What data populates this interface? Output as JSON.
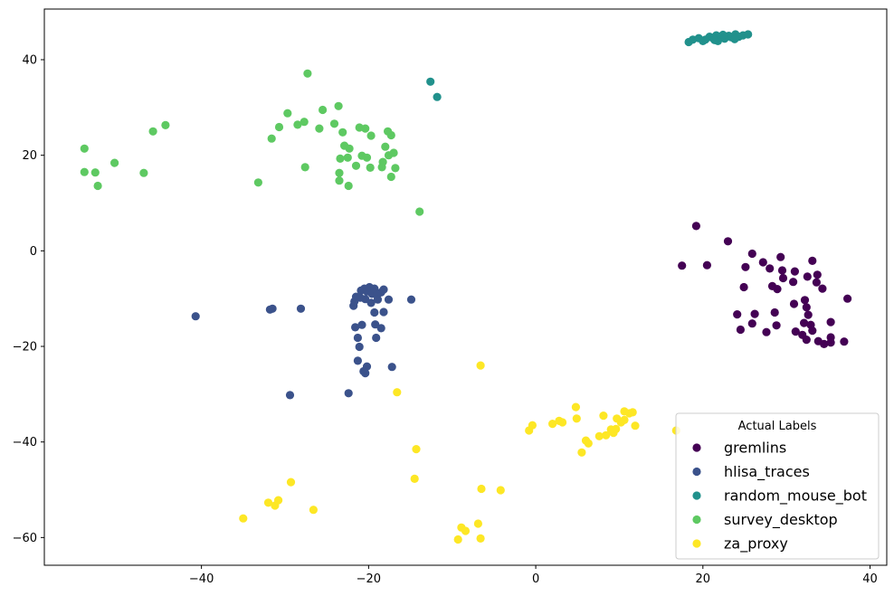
{
  "chart_data": {
    "type": "scatter",
    "title": "",
    "xlabel": "",
    "ylabel": "",
    "xlim": [
      -58.8,
      42
    ],
    "ylim": [
      -65.8,
      50.6
    ],
    "xticks": [
      -40,
      -20,
      0,
      20,
      40
    ],
    "yticks": [
      -60,
      -40,
      -20,
      0,
      20,
      40
    ],
    "xtick_labels": [
      "−40",
      "−20",
      "0",
      "20",
      "40"
    ],
    "ytick_labels": [
      "−60",
      "−40",
      "−20",
      "0",
      "20",
      "40"
    ],
    "grid": false,
    "legend": {
      "title": "Actual Labels",
      "placement": "lower-right"
    },
    "series": [
      {
        "name": "gremlins",
        "color": "#440154",
        "points": [
          [
            19.2,
            5.2
          ],
          [
            23,
            2
          ],
          [
            20.5,
            -3
          ],
          [
            17.5,
            -3.1
          ],
          [
            25.9,
            -0.6
          ],
          [
            25.1,
            -3.4
          ],
          [
            27.2,
            -2.4
          ],
          [
            28,
            -3.7
          ],
          [
            29.3,
            -1.3
          ],
          [
            29.5,
            -4.1
          ],
          [
            31,
            -4.3
          ],
          [
            32.5,
            -5.4
          ],
          [
            33.1,
            -2.1
          ],
          [
            33.7,
            -5
          ],
          [
            24.9,
            -7.6
          ],
          [
            28.3,
            -7.4
          ],
          [
            28.9,
            -8
          ],
          [
            29.6,
            -5.7
          ],
          [
            30.8,
            -6.5
          ],
          [
            32.2,
            -10.3
          ],
          [
            34.3,
            -7.9
          ],
          [
            33.6,
            -6.6
          ],
          [
            37.3,
            -10
          ],
          [
            26.2,
            -13.2
          ],
          [
            24.1,
            -13.3
          ],
          [
            25.9,
            -15.2
          ],
          [
            28.6,
            -12.9
          ],
          [
            30.9,
            -11.1
          ],
          [
            32.4,
            -11.8
          ],
          [
            32.6,
            -13.4
          ],
          [
            35.3,
            -14.9
          ],
          [
            24.5,
            -16.5
          ],
          [
            27.6,
            -17
          ],
          [
            28.8,
            -15.6
          ],
          [
            31.1,
            -16.9
          ],
          [
            32.1,
            -15.1
          ],
          [
            32.9,
            -15.5
          ],
          [
            31.9,
            -17.6
          ],
          [
            33.1,
            -16.7
          ],
          [
            32.4,
            -18.6
          ],
          [
            33.8,
            -18.9
          ],
          [
            34.5,
            -19.5
          ],
          [
            35.3,
            -18.1
          ],
          [
            35.3,
            -19.2
          ],
          [
            36.9,
            -19
          ]
        ]
      },
      {
        "name": "hlisa_traces",
        "color": "#3b528b",
        "points": [
          [
            -40.7,
            -13.7
          ],
          [
            -31.8,
            -12.3
          ],
          [
            -31.5,
            -12.1
          ],
          [
            -28.1,
            -12.1
          ],
          [
            -29.4,
            -30.2
          ],
          [
            -22.4,
            -29.8
          ],
          [
            -14.9,
            -10.2
          ],
          [
            -17.2,
            -24.3
          ],
          [
            -21.8,
            -11.5
          ],
          [
            -21.7,
            -10.6
          ],
          [
            -21.5,
            -9.6
          ],
          [
            -20.9,
            -8.3
          ],
          [
            -20.5,
            -7.9
          ],
          [
            -20.2,
            -8.5
          ],
          [
            -19.9,
            -7.6
          ],
          [
            -19.6,
            -9
          ],
          [
            -19.3,
            -7.9
          ],
          [
            -19,
            -9.3
          ],
          [
            -18.5,
            -8.7
          ],
          [
            -18.2,
            -8.1
          ],
          [
            -18.9,
            -10.2
          ],
          [
            -19.7,
            -10.9
          ],
          [
            -20.4,
            -10.1
          ],
          [
            -21,
            -9.8
          ],
          [
            -19.3,
            -12.9
          ],
          [
            -18.2,
            -12.8
          ],
          [
            -17.6,
            -10.2
          ],
          [
            -21.6,
            -16
          ],
          [
            -20.8,
            -15.5
          ],
          [
            -19.2,
            -15.4
          ],
          [
            -18.5,
            -16.2
          ],
          [
            -21.3,
            -18.2
          ],
          [
            -19.1,
            -18.2
          ],
          [
            -21.1,
            -20.1
          ],
          [
            -21.3,
            -23
          ],
          [
            -20.2,
            -24.2
          ],
          [
            -20.6,
            -25.2
          ],
          [
            -20.4,
            -25.6
          ]
        ]
      },
      {
        "name": "random_mouse_bot",
        "color": "#21918c",
        "points": [
          [
            -12.6,
            35.4
          ],
          [
            -11.8,
            32.2
          ],
          [
            18.3,
            43.7
          ],
          [
            18.8,
            44.2
          ],
          [
            19.5,
            44.5
          ],
          [
            20.3,
            44.2
          ],
          [
            20.8,
            44.8
          ],
          [
            21.2,
            44.5
          ],
          [
            21.6,
            45.1
          ],
          [
            22.1,
            44.8
          ],
          [
            22.6,
            44.4
          ],
          [
            23.1,
            45
          ],
          [
            23.4,
            44.7
          ],
          [
            23.9,
            45.3
          ],
          [
            24.3,
            44.8
          ],
          [
            24.8,
            45.1
          ],
          [
            25.4,
            45.3
          ],
          [
            20,
            43.9
          ],
          [
            21.8,
            43.9
          ],
          [
            22.4,
            45.2
          ],
          [
            23.8,
            44.3
          ],
          [
            21.4,
            44.1
          ]
        ]
      },
      {
        "name": "survey_desktop",
        "color": "#5ec962",
        "points": [
          [
            -54,
            21.4
          ],
          [
            -54,
            16.5
          ],
          [
            -52.7,
            16.4
          ],
          [
            -52.4,
            13.6
          ],
          [
            -50.4,
            18.4
          ],
          [
            -46.9,
            16.3
          ],
          [
            -45.8,
            25
          ],
          [
            -44.3,
            26.3
          ],
          [
            -33.2,
            14.3
          ],
          [
            -31.6,
            23.5
          ],
          [
            -30.7,
            25.9
          ],
          [
            -29.7,
            28.8
          ],
          [
            -28.5,
            26.4
          ],
          [
            -27.7,
            27
          ],
          [
            -27.6,
            17.5
          ],
          [
            -27.3,
            37.1
          ],
          [
            -25.9,
            25.6
          ],
          [
            -25.5,
            29.5
          ],
          [
            -24.1,
            26.6
          ],
          [
            -23.6,
            30.3
          ],
          [
            -23.1,
            24.8
          ],
          [
            -22.9,
            22
          ],
          [
            -22.3,
            21.4
          ],
          [
            -22.5,
            19.5
          ],
          [
            -23.4,
            19.3
          ],
          [
            -23.5,
            16.3
          ],
          [
            -23.5,
            14.7
          ],
          [
            -22.4,
            13.6
          ],
          [
            -21.5,
            17.8
          ],
          [
            -20.8,
            19.9
          ],
          [
            -21.1,
            25.8
          ],
          [
            -20.4,
            25.6
          ],
          [
            -20.2,
            19.5
          ],
          [
            -19.7,
            24.1
          ],
          [
            -19.8,
            17.4
          ],
          [
            -18.4,
            17.5
          ],
          [
            -18.3,
            18.6
          ],
          [
            -18,
            21.8
          ],
          [
            -17.7,
            25
          ],
          [
            -17.3,
            24.2
          ],
          [
            -17.6,
            20
          ],
          [
            -17,
            20.5
          ],
          [
            -17.3,
            15.5
          ],
          [
            -16.8,
            17.3
          ],
          [
            -13.9,
            8.2
          ]
        ]
      },
      {
        "name": "za_proxy",
        "color": "#fde725",
        "points": [
          [
            -6.6,
            -24
          ],
          [
            -16.6,
            -29.6
          ],
          [
            -14.3,
            -41.5
          ],
          [
            -14.5,
            -47.7
          ],
          [
            -29.3,
            -48.4
          ],
          [
            -35,
            -56
          ],
          [
            -32,
            -52.7
          ],
          [
            -31.2,
            -53.3
          ],
          [
            -30.8,
            -52.2
          ],
          [
            -26.6,
            -54.2
          ],
          [
            -9.3,
            -60.4
          ],
          [
            -8.9,
            -57.9
          ],
          [
            -8.4,
            -58.6
          ],
          [
            -6.9,
            -57.1
          ],
          [
            -6.6,
            -60.2
          ],
          [
            -6.5,
            -49.8
          ],
          [
            -4.2,
            -50.1
          ],
          [
            -0.8,
            -37.6
          ],
          [
            -0.4,
            -36.5
          ],
          [
            2,
            -36.2
          ],
          [
            2.8,
            -35.6
          ],
          [
            3.2,
            -35.9
          ],
          [
            4.8,
            -32.7
          ],
          [
            4.9,
            -35.1
          ],
          [
            5.5,
            -42.2
          ],
          [
            6,
            -39.7
          ],
          [
            6.3,
            -40.3
          ],
          [
            7.6,
            -38.8
          ],
          [
            8.1,
            -34.5
          ],
          [
            8.4,
            -38.6
          ],
          [
            9,
            -37.4
          ],
          [
            9.3,
            -38.1
          ],
          [
            9.6,
            -37.3
          ],
          [
            9.7,
            -35.1
          ],
          [
            10.2,
            -35.9
          ],
          [
            10.6,
            -35.4
          ],
          [
            10.6,
            -33.6
          ],
          [
            11.2,
            -34
          ],
          [
            11.6,
            -33.8
          ],
          [
            11.9,
            -36.6
          ],
          [
            16.8,
            -37.6
          ]
        ]
      }
    ]
  }
}
